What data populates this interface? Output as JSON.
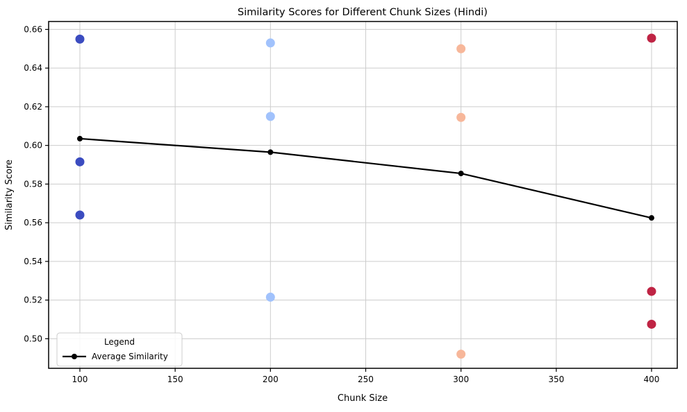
{
  "chart_data": {
    "type": "scatter",
    "title": "Similarity Scores for Different Chunk Sizes (Hindi)",
    "xlabel": "Chunk Size",
    "ylabel": "Similarity Score",
    "xlim": [
      83.6,
      413.5
    ],
    "ylim": [
      0.4847,
      0.6641
    ],
    "x_ticks": [
      100,
      150,
      200,
      250,
      300,
      350,
      400
    ],
    "y_ticks": [
      0.5,
      0.52,
      0.54,
      0.56,
      0.58,
      0.6,
      0.62,
      0.64,
      0.66
    ],
    "grid": true,
    "grid_color": "#cccccc",
    "spine_color": "#000000",
    "series": [
      {
        "name": "chunk-100-points",
        "kind": "scatter",
        "color": "#3B4CC0",
        "x": [
          100,
          100,
          100
        ],
        "y": [
          0.655,
          0.5915,
          0.564
        ]
      },
      {
        "name": "chunk-200-points",
        "kind": "scatter",
        "color": "#A1C2FC",
        "x": [
          200,
          200,
          200
        ],
        "y": [
          0.653,
          0.615,
          0.5215
        ]
      },
      {
        "name": "chunk-300-points",
        "kind": "scatter",
        "color": "#F7B79A",
        "x": [
          300,
          300,
          300
        ],
        "y": [
          0.65,
          0.6145,
          0.492
        ]
      },
      {
        "name": "chunk-400-points",
        "kind": "scatter",
        "color": "#BF2444",
        "x": [
          400,
          400,
          400
        ],
        "y": [
          0.6555,
          0.5245,
          0.5075
        ]
      },
      {
        "name": "Average Similarity",
        "kind": "line",
        "color": "#000000",
        "x": [
          100,
          200,
          300,
          400
        ],
        "y": [
          0.6035,
          0.5965,
          0.5855,
          0.5625
        ]
      }
    ],
    "legend": {
      "title": "Legend",
      "entries": [
        "Average Similarity"
      ],
      "position": "lower left"
    }
  }
}
